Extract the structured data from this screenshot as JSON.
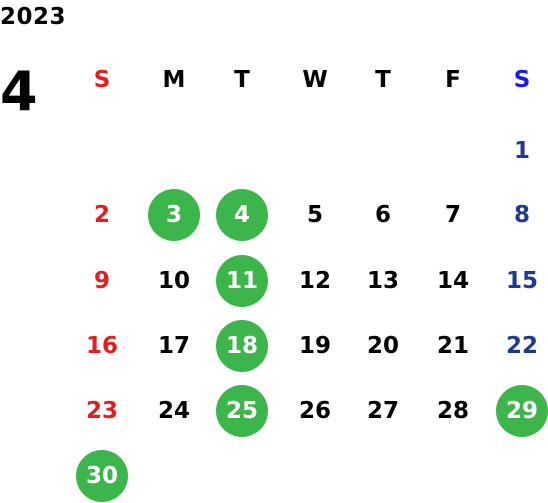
{
  "calendar": {
    "year": "2023",
    "month": "4",
    "weekdays": [
      "S",
      "M",
      "T",
      "W",
      "T",
      "F",
      "S"
    ],
    "first_weekday_index": 6,
    "days_in_month": 30,
    "highlighted_days": [
      3,
      4,
      11,
      18,
      25,
      29,
      30
    ],
    "colors": {
      "text": "#000000",
      "sunday": "#e02020",
      "saturday_weekday_label": "#1a1ae6",
      "saturday_date": "#1f3a8f",
      "highlight_background": "#3cb54a",
      "highlight_text": "#ffffff"
    }
  }
}
